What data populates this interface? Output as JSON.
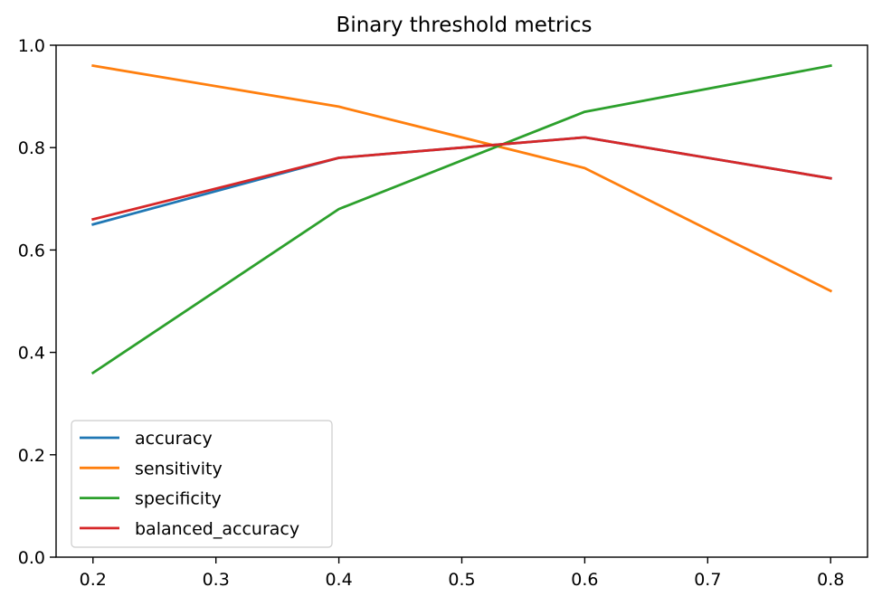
{
  "chart_data": {
    "type": "line",
    "title": "Binary threshold metrics",
    "xlabel": "",
    "ylabel": "",
    "x": [
      0.2,
      0.4,
      0.6,
      0.8
    ],
    "xlim": [
      0.17,
      0.83
    ],
    "ylim": [
      0.0,
      1.0
    ],
    "x_ticks": [
      0.2,
      0.3,
      0.4,
      0.5,
      0.6,
      0.7,
      0.8
    ],
    "x_tick_labels": [
      "0.2",
      "0.3",
      "0.4",
      "0.5",
      "0.6",
      "0.7",
      "0.8"
    ],
    "y_ticks": [
      0.0,
      0.2,
      0.4,
      0.6,
      0.8,
      1.0
    ],
    "y_tick_labels": [
      "0.0",
      "0.2",
      "0.4",
      "0.6",
      "0.8",
      "1.0"
    ],
    "grid": false,
    "legend_position": "lower-left",
    "series": [
      {
        "name": "accuracy",
        "color": "#1f77b4",
        "values": [
          0.65,
          0.78,
          0.82,
          0.74
        ]
      },
      {
        "name": "sensitivity",
        "color": "#ff7f0e",
        "values": [
          0.96,
          0.88,
          0.76,
          0.52
        ]
      },
      {
        "name": "specificity",
        "color": "#2ca02c",
        "values": [
          0.36,
          0.68,
          0.87,
          0.96
        ]
      },
      {
        "name": "balanced_accuracy",
        "color": "#d62728",
        "values": [
          0.66,
          0.78,
          0.82,
          0.74
        ]
      }
    ]
  }
}
